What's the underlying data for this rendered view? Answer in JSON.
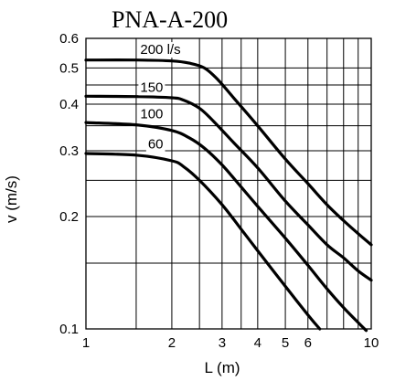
{
  "chart_data": {
    "type": "line",
    "title": "PNA-A-200",
    "xlabel": "L (m)",
    "ylabel": "v (m/s)",
    "xscale": "log",
    "yscale": "log",
    "xlim": [
      1,
      10
    ],
    "ylim": [
      0.1,
      0.6
    ],
    "grid": true,
    "xticks": [
      1,
      2,
      3,
      4,
      5,
      6,
      10
    ],
    "xtick_labels": [
      "1",
      "2",
      "3",
      "4",
      "5",
      "6",
      "10"
    ],
    "xgrid": [
      1,
      1.5,
      2,
      2.5,
      3,
      3.5,
      4,
      5,
      6,
      7,
      8,
      9,
      10
    ],
    "yticks": [
      0.1,
      0.2,
      0.3,
      0.4,
      0.5,
      0.6
    ],
    "ytick_labels": [
      "0.1",
      "0.2",
      "0.3",
      "0.4",
      "0.5",
      "0.6"
    ],
    "ygrid": [
      0.1,
      0.15,
      0.2,
      0.25,
      0.3,
      0.35,
      0.4,
      0.45,
      0.5,
      0.6
    ],
    "series": [
      {
        "name": "200 l/s",
        "x": [
          1,
          1.5,
          2,
          2.3,
          2.6,
          2.9,
          3.3,
          4,
          5,
          6,
          7,
          8,
          9,
          10
        ],
        "y": [
          0.525,
          0.525,
          0.522,
          0.515,
          0.5,
          0.465,
          0.415,
          0.35,
          0.285,
          0.245,
          0.215,
          0.195,
          0.18,
          0.168
        ]
      },
      {
        "name": "150",
        "x": [
          1,
          1.5,
          2,
          2.2,
          2.5,
          2.8,
          3.3,
          4,
          5,
          6,
          7,
          8,
          9,
          10
        ],
        "y": [
          0.42,
          0.419,
          0.416,
          0.41,
          0.39,
          0.36,
          0.315,
          0.27,
          0.22,
          0.19,
          0.168,
          0.155,
          0.143,
          0.135
        ]
      },
      {
        "name": "100",
        "x": [
          1,
          1.5,
          2,
          2.3,
          2.6,
          3,
          3.5,
          4,
          5,
          6,
          7,
          8,
          9,
          9.6
        ],
        "y": [
          0.357,
          0.352,
          0.34,
          0.325,
          0.305,
          0.275,
          0.24,
          0.213,
          0.175,
          0.148,
          0.128,
          0.114,
          0.104,
          0.099
        ]
      },
      {
        "name": "60",
        "x": [
          1,
          1.5,
          2,
          2.2,
          2.5,
          3,
          3.5,
          4,
          5,
          6,
          6.6
        ],
        "y": [
          0.295,
          0.292,
          0.282,
          0.272,
          0.25,
          0.215,
          0.185,
          0.162,
          0.13,
          0.109,
          0.1
        ]
      }
    ],
    "annotations": [
      {
        "text": "200 l/s",
        "x": 1.55,
        "y": 0.545
      },
      {
        "text": "150",
        "x": 1.55,
        "y": 0.432
      },
      {
        "text": "100",
        "x": 1.55,
        "y": 0.366
      },
      {
        "text": "60",
        "x": 1.65,
        "y": 0.304
      }
    ]
  }
}
